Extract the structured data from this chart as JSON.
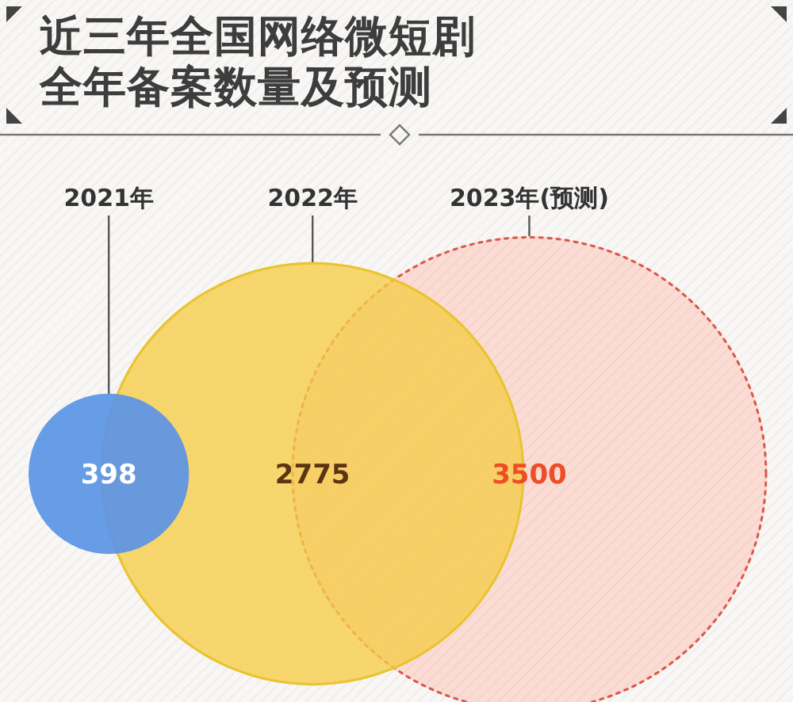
{
  "chart_data": {
    "type": "other",
    "title": "近三年全国网络微短剧全年备案数量及预测",
    "categories": [
      "2021年",
      "2022年",
      "2023年(预测)"
    ],
    "values": [
      398,
      2775,
      3500
    ],
    "colors": [
      "#5b94e4",
      "#f5cd46",
      "#fbdcd5"
    ],
    "data_labels": true
  }
}
